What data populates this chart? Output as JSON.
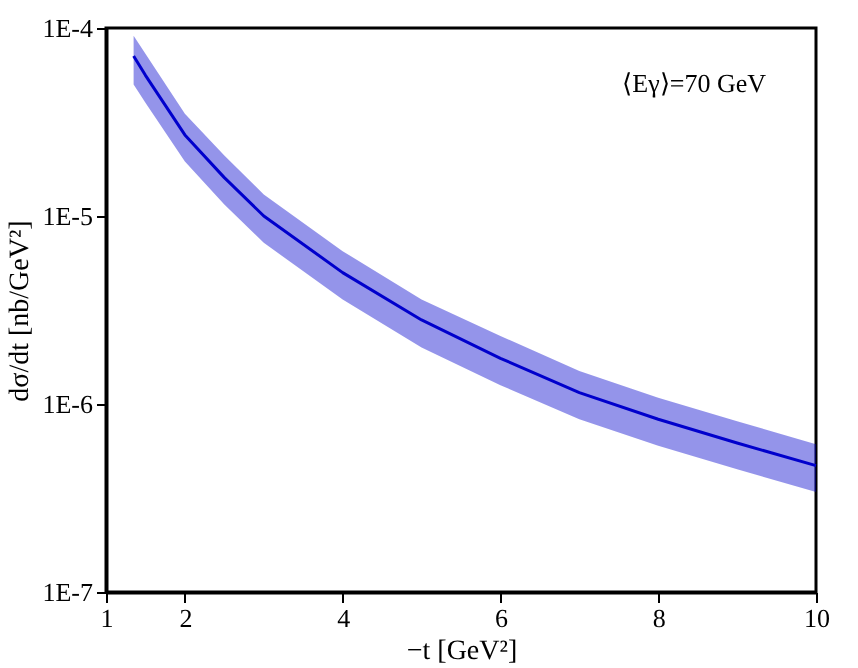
{
  "chart_data": {
    "type": "line",
    "xlabel": "−t  [GeV²]",
    "ylabel": "dσ/dt  [nb/GeV²]",
    "log": true,
    "grid": false,
    "marker": "none",
    "line_style": "solid",
    "x": [
      1.35,
      1.5,
      2,
      2.5,
      3,
      4,
      5,
      6,
      7,
      8,
      9,
      10
    ],
    "series": [
      {
        "color": "#0000cc",
        "values": [
          7.1e-05,
          5.6e-05,
          2.7e-05,
          1.6e-05,
          1e-05,
          5e-06,
          2.8e-06,
          1.75e-06,
          1.15e-06,
          8.3e-07,
          6.2e-07,
          4.7e-07
        ],
        "upper": [
          9.1e-05,
          7.3e-05,
          3.5e-05,
          2.1e-05,
          1.3e-05,
          6.5e-06,
          3.6e-06,
          2.3e-06,
          1.5e-06,
          1.08e-06,
          8.1e-07,
          6.1e-07
        ],
        "lower": [
          5e-05,
          4e-05,
          1.95e-05,
          1.15e-05,
          7.2e-06,
          3.6e-06,
          2e-06,
          1.26e-06,
          8.3e-07,
          6e-07,
          4.5e-07,
          3.4e-07
        ]
      }
    ],
    "xlim": [
      1,
      10
    ],
    "xticks": [
      1,
      2,
      4,
      6,
      8,
      10
    ],
    "ylim": [
      1e-07,
      0.0001
    ],
    "yticks": [
      {
        "value": 1e-07,
        "label": "1E-7"
      },
      {
        "value": 1e-06,
        "label": "1E-6"
      },
      {
        "value": 1e-05,
        "label": "1E-5"
      },
      {
        "value": 0.0001,
        "label": "1E-4"
      }
    ],
    "annotations": [
      "⟨Eγ⟩=70 GeV"
    ]
  }
}
